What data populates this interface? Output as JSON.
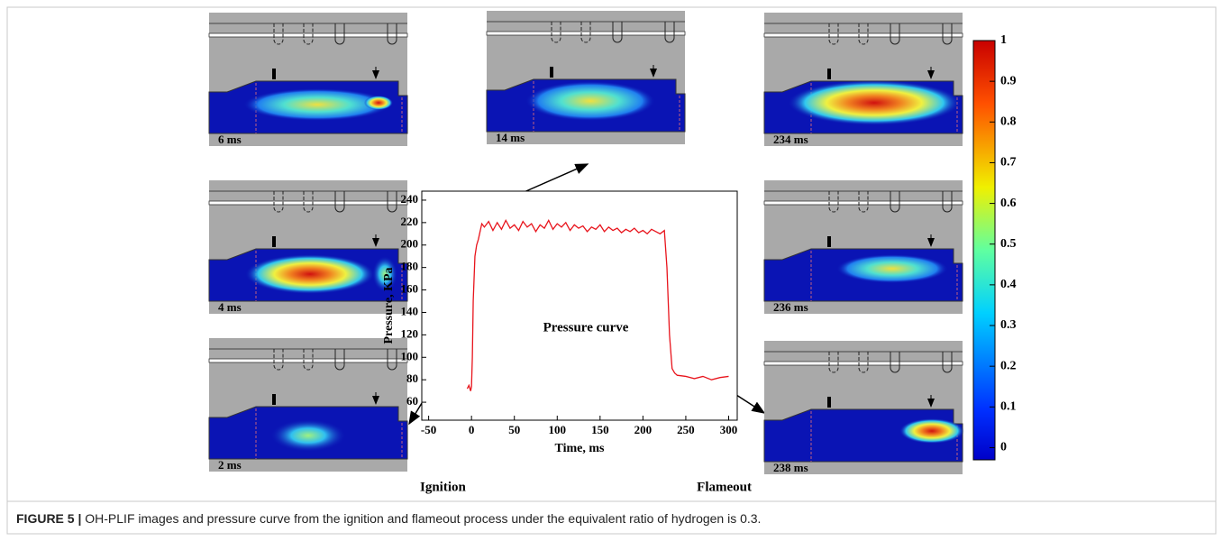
{
  "chart_data": {
    "type": "line",
    "xlabel": "Time, ms",
    "ylabel": "Pressure, KPa",
    "annotation": "Pressure curve",
    "left_note": "Ignition",
    "right_note": "Flameout",
    "x": [
      -5,
      -3,
      -1,
      0,
      1,
      2,
      4,
      6,
      8,
      10,
      12,
      15,
      20,
      25,
      30,
      35,
      40,
      45,
      50,
      55,
      60,
      65,
      70,
      75,
      80,
      85,
      90,
      95,
      100,
      105,
      110,
      115,
      120,
      125,
      130,
      135,
      140,
      145,
      150,
      155,
      160,
      165,
      170,
      175,
      180,
      185,
      190,
      195,
      200,
      205,
      210,
      215,
      220,
      225,
      228,
      231,
      234,
      237,
      240,
      250,
      260,
      270,
      280,
      290,
      300
    ],
    "series": [
      {
        "color": "#e8141c",
        "values": [
          72,
          75,
          70,
          74,
          100,
          150,
          190,
          200,
          205,
          212,
          219,
          216,
          221,
          213,
          220,
          214,
          222,
          215,
          218,
          213,
          221,
          216,
          219,
          212,
          218,
          215,
          222,
          214,
          219,
          216,
          220,
          213,
          218,
          215,
          217,
          212,
          216,
          214,
          218,
          212,
          216,
          213,
          215,
          211,
          214,
          212,
          215,
          211,
          213,
          210,
          214,
          212,
          210,
          213,
          180,
          120,
          90,
          86,
          84,
          83,
          81,
          83,
          80,
          82,
          83
        ]
      }
    ],
    "xlim": [
      -58,
      310
    ],
    "ylim": [
      44,
      248
    ],
    "xticks": [
      -50,
      0,
      50,
      100,
      150,
      200,
      250,
      300
    ],
    "yticks": [
      60,
      80,
      100,
      120,
      140,
      160,
      180,
      200,
      220,
      240
    ]
  },
  "panels": [
    {
      "label": "6 ms"
    },
    {
      "label": "4 ms"
    },
    {
      "label": "2 ms"
    },
    {
      "label": "14 ms"
    },
    {
      "label": "234 ms"
    },
    {
      "label": "236 ms"
    },
    {
      "label": "238 ms"
    }
  ],
  "colorbar": {
    "lim": [
      -0.03,
      1
    ],
    "ticks": [
      0,
      0.1,
      0.2,
      0.3,
      0.4,
      0.5,
      0.6,
      0.7,
      0.8,
      0.9,
      1
    ]
  },
  "caption": {
    "figure": "FIGURE 5 |",
    "text": "OH-PLIF images and pressure curve from the ignition and flameout process under the equivalent ratio of hydrogen is 0.3."
  }
}
